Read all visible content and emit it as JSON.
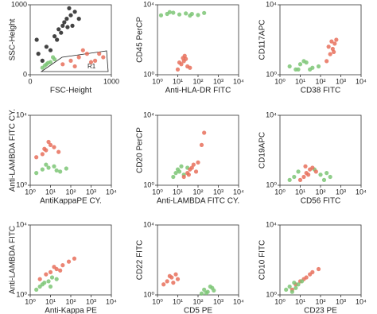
{
  "chart_data": [
    {
      "type": "scatter",
      "xlabel": "FSC-Height",
      "ylabel": "SSC-Height",
      "annotation": "R1",
      "log": false,
      "xlim": [
        0,
        1000
      ],
      "ylim": [
        0,
        1000
      ],
      "xticks": [
        0,
        1000
      ],
      "yticks": [
        0,
        1000
      ],
      "series": [
        {
          "color": "#222222",
          "x": [
            300,
            350,
            400,
            450,
            500,
            550,
            420,
            380,
            480,
            520,
            600,
            330,
            460,
            100,
            150,
            80,
            200,
            250
          ],
          "y": [
            550,
            650,
            700,
            800,
            850,
            900,
            750,
            600,
            950,
            700,
            800,
            500,
            680,
            300,
            200,
            500,
            400,
            350
          ]
        },
        {
          "color": "#7cc576",
          "x": [
            150,
            200,
            250,
            300,
            180,
            280,
            220
          ],
          "y": [
            100,
            150,
            180,
            220,
            130,
            250,
            170
          ]
        },
        {
          "color": "#e8705c",
          "x": [
            400,
            500,
            600,
            700,
            800,
            900,
            550,
            750,
            650,
            850
          ],
          "y": [
            150,
            200,
            250,
            300,
            200,
            250,
            120,
            180,
            350,
            300
          ]
        }
      ]
    },
    {
      "type": "scatter",
      "xlabel": "Anti-HLA-DR FITC",
      "ylabel": "CD45 PerCP",
      "log": true,
      "xlim": [
        1,
        10000
      ],
      "ylim": [
        1,
        10000
      ],
      "xticks": [
        {
          "value": 1,
          "label": "10⁰"
        },
        {
          "value": 10,
          "label": "10¹"
        },
        {
          "value": 100,
          "label": "10²"
        },
        {
          "value": 1000,
          "label": "10³"
        },
        {
          "value": 10000,
          "label": "10⁴"
        }
      ],
      "yticks": [
        {
          "value": 1,
          "label": "10⁰"
        },
        {
          "value": 10000,
          "label": "10⁴"
        }
      ],
      "series": [
        {
          "color": "#7cc576",
          "x": [
            1.5,
            3,
            6,
            12,
            25,
            50,
            100,
            200,
            4,
            40
          ],
          "y": [
            2500,
            3000,
            3500,
            2800,
            3200,
            3000,
            2600,
            3400,
            3800,
            2400
          ]
        },
        {
          "color": "#e8705c",
          "x": [
            10,
            15,
            20,
            25,
            30,
            12,
            18,
            40,
            22
          ],
          "y": [
            2,
            4,
            6,
            8,
            3,
            5,
            9,
            2.5,
            12
          ]
        }
      ]
    },
    {
      "type": "scatter",
      "xlabel": "CD38 FITC",
      "ylabel": "CD117APC",
      "log": true,
      "xlim": [
        1,
        10000
      ],
      "ylim": [
        1,
        10000
      ],
      "xticks": [
        {
          "value": 1,
          "label": "10⁰"
        },
        {
          "value": 10,
          "label": "10¹"
        },
        {
          "value": 100,
          "label": "10²"
        },
        {
          "value": 1000,
          "label": "10³"
        },
        {
          "value": 10000,
          "label": "10⁴"
        }
      ],
      "yticks": [
        {
          "value": 1,
          "label": "10⁰"
        },
        {
          "value": 10000,
          "label": "10⁴"
        }
      ],
      "series": [
        {
          "color": "#7cc576",
          "x": [
            3,
            6,
            10,
            20,
            40,
            80,
            15,
            30,
            8
          ],
          "y": [
            3,
            2,
            4,
            5,
            2.5,
            3,
            6,
            2,
            2
          ]
        },
        {
          "color": "#e8705c",
          "x": [
            200,
            300,
            400,
            500,
            600,
            250,
            450,
            350
          ],
          "y": [
            6,
            15,
            30,
            60,
            100,
            40,
            20,
            80
          ]
        }
      ]
    },
    {
      "type": "scatter",
      "xlabel": "AntiKappaPE CY.",
      "ylabel": "Anti-LAMBDA FITC CY.",
      "log": true,
      "xlim": [
        1,
        10000
      ],
      "ylim": [
        1,
        10000
      ],
      "xticks": [
        {
          "value": 1,
          "label": "10⁰"
        },
        {
          "value": 10,
          "label": "10¹"
        },
        {
          "value": 100,
          "label": "10²"
        },
        {
          "value": 1000,
          "label": "10³"
        },
        {
          "value": 10000,
          "label": "10⁴"
        }
      ],
      "yticks": [
        {
          "value": 1,
          "label": "10⁰"
        },
        {
          "value": 10000,
          "label": "10⁴"
        }
      ],
      "series": [
        {
          "color": "#e8705c",
          "x": [
            2,
            4,
            6,
            10,
            15,
            25,
            8,
            5
          ],
          "y": [
            40,
            60,
            100,
            200,
            150,
            80,
            300,
            120
          ]
        },
        {
          "color": "#7cc576",
          "x": [
            2,
            4,
            8,
            15,
            30,
            60,
            6,
            20
          ],
          "y": [
            5,
            8,
            10,
            12,
            6,
            9,
            15,
            7
          ]
        }
      ]
    },
    {
      "type": "scatter",
      "xlabel": "Anti-LAMBDA FITC CY.",
      "ylabel": "CD20 PerCP",
      "log": true,
      "xlim": [
        1,
        10000
      ],
      "ylim": [
        1,
        10000
      ],
      "xticks": [
        {
          "value": 1,
          "label": "10⁰"
        },
        {
          "value": 10,
          "label": "10¹"
        },
        {
          "value": 100,
          "label": "10²"
        },
        {
          "value": 1000,
          "label": "10³"
        },
        {
          "value": 10000,
          "label": "10⁴"
        }
      ],
      "yticks": [
        {
          "value": 1,
          "label": "10⁰"
        },
        {
          "value": 10000,
          "label": "10⁴"
        }
      ],
      "series": [
        {
          "color": "#7cc576",
          "x": [
            6,
            8,
            10,
            15,
            20,
            30,
            12
          ],
          "y": [
            3,
            5,
            8,
            12,
            4,
            10,
            6
          ]
        },
        {
          "color": "#e8705c",
          "x": [
            20,
            30,
            40,
            60,
            80,
            100,
            50,
            35,
            150,
            200
          ],
          "y": [
            3,
            5,
            8,
            15,
            6,
            20,
            10,
            4,
            200,
            1000
          ]
        }
      ]
    },
    {
      "type": "scatter",
      "xlabel": "CD56 FITC",
      "ylabel": "CD19APC",
      "log": true,
      "xlim": [
        1,
        10000
      ],
      "ylim": [
        1,
        10000
      ],
      "xticks": [
        {
          "value": 1,
          "label": "10⁰"
        },
        {
          "value": 10,
          "label": "10¹"
        },
        {
          "value": 100,
          "label": "10²"
        },
        {
          "value": 1000,
          "label": "10³"
        },
        {
          "value": 10000,
          "label": "10⁴"
        }
      ],
      "yticks": [
        {
          "value": 1,
          "label": "10⁰"
        },
        {
          "value": 10000,
          "label": "10⁴"
        }
      ],
      "series": [
        {
          "color": "#7cc576",
          "x": [
            3,
            5,
            8,
            100,
            200,
            300,
            50,
            150
          ],
          "y": [
            2,
            3,
            6,
            4,
            5,
            3,
            8,
            2
          ]
        },
        {
          "color": "#e8705c",
          "x": [
            10,
            15,
            20,
            30,
            40,
            60,
            25,
            18
          ],
          "y": [
            2,
            3,
            5,
            8,
            10,
            6,
            4,
            12
          ]
        }
      ]
    },
    {
      "type": "scatter",
      "xlabel": "Anti-Kappa PE",
      "ylabel": "Anti-LAMBDA FITC",
      "log": true,
      "xlim": [
        1,
        10000
      ],
      "ylim": [
        1,
        10000
      ],
      "xticks": [
        {
          "value": 1,
          "label": "10⁰"
        },
        {
          "value": 10,
          "label": "10¹"
        },
        {
          "value": 100,
          "label": "10²"
        },
        {
          "value": 1000,
          "label": "10³"
        },
        {
          "value": 10000,
          "label": "10⁴"
        }
      ],
      "yticks": [
        {
          "value": 1,
          "label": "10⁰"
        },
        {
          "value": 10000,
          "label": "10⁴"
        }
      ],
      "series": [
        {
          "color": "#e8705c",
          "x": [
            3,
            6,
            10,
            20,
            40,
            80,
            150,
            15,
            30
          ],
          "y": [
            8,
            15,
            20,
            30,
            50,
            80,
            120,
            40,
            25
          ]
        },
        {
          "color": "#7cc576",
          "x": [
            2,
            3,
            5,
            8,
            12,
            20,
            4,
            10
          ],
          "y": [
            2,
            3,
            5,
            6,
            10,
            8,
            4,
            3
          ]
        }
      ]
    },
    {
      "type": "scatter",
      "xlabel": "CD5 PE",
      "ylabel": "CD22 FITC",
      "log": true,
      "xlim": [
        1,
        10000
      ],
      "ylim": [
        1,
        10000
      ],
      "xticks": [
        {
          "value": 1,
          "label": "10⁰"
        },
        {
          "value": 10,
          "label": "10¹"
        },
        {
          "value": 100,
          "label": "10²"
        },
        {
          "value": 1000,
          "label": "10³"
        },
        {
          "value": 10000,
          "label": "10⁴"
        }
      ],
      "yticks": [
        {
          "value": 1,
          "label": "10⁰"
        },
        {
          "value": 10000,
          "label": "10⁴"
        }
      ],
      "series": [
        {
          "color": "#e8705c",
          "x": [
            2,
            3,
            5,
            8,
            10,
            4,
            6
          ],
          "y": [
            4,
            6,
            10,
            15,
            8,
            12,
            5
          ]
        },
        {
          "color": "#7cc576",
          "x": [
            150,
            200,
            300,
            400,
            600,
            250,
            500
          ],
          "y": [
            1.2,
            2,
            1.5,
            3,
            1.8,
            1.3,
            2.5
          ]
        }
      ]
    },
    {
      "type": "scatter",
      "xlabel": "CD23 PE",
      "ylabel": "CD10 FITC",
      "log": true,
      "xlim": [
        1,
        10000
      ],
      "ylim": [
        1,
        10000
      ],
      "xticks": [
        {
          "value": 1,
          "label": "10⁰"
        },
        {
          "value": 10,
          "label": "10¹"
        },
        {
          "value": 100,
          "label": "10²"
        },
        {
          "value": 1000,
          "label": "10³"
        },
        {
          "value": 10000,
          "label": "10⁴"
        }
      ],
      "yticks": [
        {
          "value": 1,
          "label": "10⁰"
        },
        {
          "value": 10000,
          "label": "10⁴"
        }
      ],
      "series": [
        {
          "color": "#e8705c",
          "x": [
            4,
            6,
            10,
            20,
            40,
            80,
            15,
            30
          ],
          "y": [
            2,
            4,
            6,
            10,
            20,
            30,
            8,
            15
          ]
        },
        {
          "color": "#7cc576",
          "x": [
            2,
            3,
            5,
            8,
            12,
            4,
            6
          ],
          "y": [
            2,
            3,
            5,
            4,
            6,
            1.5,
            2.5
          ]
        }
      ]
    }
  ]
}
